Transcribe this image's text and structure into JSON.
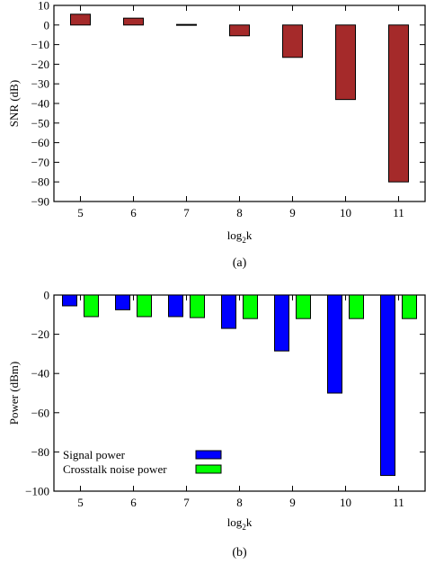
{
  "chart_data": [
    {
      "type": "bar",
      "panel_caption": "(a)",
      "xlabel_base": "log",
      "xlabel_sub": "2",
      "xlabel_var": "k",
      "ylabel": "SNR (dB)",
      "categories": [
        "5",
        "6",
        "7",
        "8",
        "9",
        "10",
        "11"
      ],
      "values": [
        5.5,
        3.5,
        0.3,
        -5.5,
        -16.5,
        -38,
        -80
      ],
      "ylim": [
        -90,
        10
      ],
      "yticks": [
        10,
        0,
        -10,
        -20,
        -30,
        -40,
        -50,
        -60,
        -70,
        -80,
        -90
      ],
      "bar_color": "#a52a2a",
      "grid": false,
      "legend": null
    },
    {
      "type": "bar",
      "panel_caption": "(b)",
      "xlabel_base": "log",
      "xlabel_sub": "2",
      "xlabel_var": "k",
      "ylabel": "Power (dBm)",
      "categories": [
        "5",
        "6",
        "7",
        "8",
        "9",
        "10",
        "11"
      ],
      "series": [
        {
          "name": "Signal power",
          "values": [
            -5.5,
            -7.5,
            -11,
            -17,
            -28.5,
            -50,
            -92
          ],
          "color": "#0000ff"
        },
        {
          "name": "Crosstalk noise power",
          "values": [
            -11,
            -11,
            -11.5,
            -12,
            -12,
            -12,
            -12
          ],
          "color": "#00ff00"
        }
      ],
      "ylim": [
        -100,
        0
      ],
      "yticks": [
        0,
        -20,
        -40,
        -60,
        -80,
        -100
      ],
      "grid": false,
      "legend_position": "bottom-left"
    }
  ]
}
